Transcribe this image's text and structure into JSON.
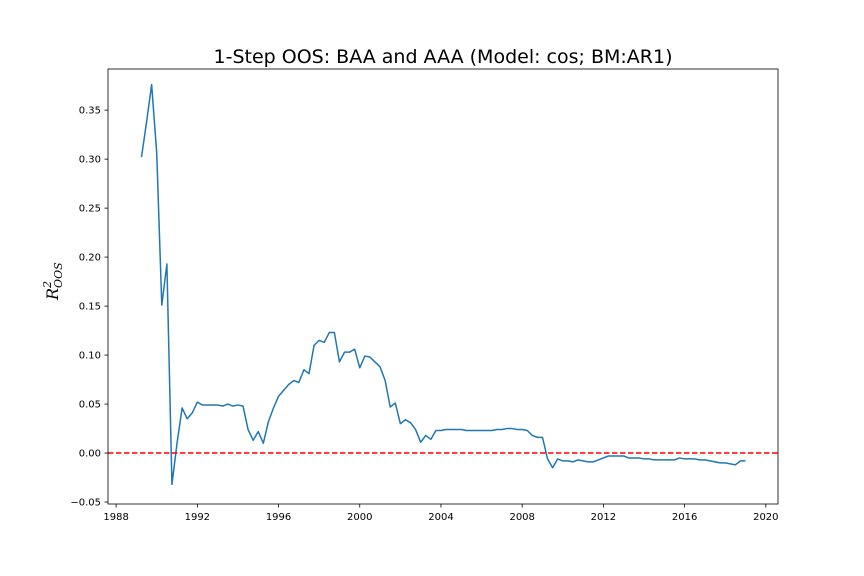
{
  "chart_data": {
    "type": "line",
    "title": "1-Step OOS: BAA and AAA (Model: cos; BM:AR1)",
    "xlabel": "",
    "ylabel": {
      "base": "R",
      "superscript": "2",
      "subscript": "OOS"
    },
    "xlim": [
      1987.6,
      2020.6
    ],
    "ylim": [
      -0.052,
      0.392
    ],
    "x_ticks": [
      1988,
      1992,
      1996,
      2000,
      2004,
      2008,
      2012,
      2016,
      2020
    ],
    "x_tick_labels": [
      "1988",
      "1992",
      "1996",
      "2000",
      "2004",
      "2008",
      "2012",
      "2016",
      "2020"
    ],
    "y_ticks": [
      -0.05,
      0.0,
      0.05,
      0.1,
      0.15,
      0.2,
      0.25,
      0.3,
      0.35
    ],
    "y_tick_labels": [
      "−0.05",
      "0.00",
      "0.05",
      "0.10",
      "0.15",
      "0.20",
      "0.25",
      "0.30",
      "0.35"
    ],
    "grid": false,
    "legend": "none",
    "reference_line": {
      "y": 0.0,
      "style": "dashed",
      "color": "#ff0000"
    },
    "series": [
      {
        "color": "#1f77b4",
        "x": [
          1989.25,
          1989.5,
          1989.75,
          1990.0,
          1990.25,
          1990.5,
          1990.75,
          1991.0,
          1991.25,
          1991.5,
          1991.75,
          1992.0,
          1992.25,
          1992.5,
          1992.75,
          1993.0,
          1993.25,
          1993.5,
          1993.75,
          1994.0,
          1994.25,
          1994.5,
          1994.75,
          1995.0,
          1995.25,
          1995.5,
          1995.75,
          1996.0,
          1996.25,
          1996.5,
          1996.75,
          1997.0,
          1997.25,
          1997.5,
          1997.75,
          1998.0,
          1998.25,
          1998.5,
          1998.75,
          1999.0,
          1999.25,
          1999.5,
          1999.75,
          2000.0,
          2000.25,
          2000.5,
          2000.75,
          2001.0,
          2001.25,
          2001.5,
          2001.75,
          2002.0,
          2002.25,
          2002.5,
          2002.75,
          2003.0,
          2003.25,
          2003.5,
          2003.75,
          2004.0,
          2004.25,
          2004.5,
          2004.75,
          2005.0,
          2005.25,
          2005.5,
          2005.75,
          2006.0,
          2006.25,
          2006.5,
          2006.75,
          2007.0,
          2007.25,
          2007.5,
          2007.75,
          2008.0,
          2008.25,
          2008.5,
          2008.75,
          2009.0,
          2009.25,
          2009.5,
          2009.75,
          2010.0,
          2010.25,
          2010.5,
          2010.75,
          2011.0,
          2011.25,
          2011.5,
          2011.75,
          2012.0,
          2012.25,
          2012.5,
          2012.75,
          2013.0,
          2013.25,
          2013.5,
          2013.75,
          2014.0,
          2014.25,
          2014.5,
          2014.75,
          2015.0,
          2015.25,
          2015.5,
          2015.75,
          2016.0,
          2016.25,
          2016.5,
          2016.75,
          2017.0,
          2017.25,
          2017.5,
          2017.75,
          2018.0,
          2018.25,
          2018.5,
          2018.75,
          2019.0
        ],
        "y": [
          0.302,
          0.338,
          0.376,
          0.306,
          0.151,
          0.193,
          -0.032,
          0.01,
          0.046,
          0.035,
          0.041,
          0.052,
          0.049,
          0.049,
          0.049,
          0.049,
          0.048,
          0.05,
          0.048,
          0.049,
          0.048,
          0.024,
          0.013,
          0.022,
          0.01,
          0.032,
          0.046,
          0.058,
          0.064,
          0.07,
          0.074,
          0.072,
          0.085,
          0.081,
          0.11,
          0.115,
          0.113,
          0.123,
          0.123,
          0.093,
          0.103,
          0.103,
          0.106,
          0.087,
          0.099,
          0.098,
          0.093,
          0.088,
          0.074,
          0.047,
          0.051,
          0.03,
          0.034,
          0.031,
          0.024,
          0.011,
          0.018,
          0.014,
          0.023,
          0.023,
          0.024,
          0.024,
          0.024,
          0.024,
          0.023,
          0.023,
          0.023,
          0.023,
          0.023,
          0.023,
          0.024,
          0.024,
          0.025,
          0.025,
          0.024,
          0.024,
          0.023,
          0.018,
          0.016,
          0.016,
          -0.006,
          -0.015,
          -0.006,
          -0.008,
          -0.008,
          -0.009,
          -0.007,
          -0.008,
          -0.009,
          -0.009,
          -0.007,
          -0.005,
          -0.003,
          -0.003,
          -0.003,
          -0.003,
          -0.005,
          -0.005,
          -0.005,
          -0.006,
          -0.006,
          -0.007,
          -0.007,
          -0.007,
          -0.007,
          -0.007,
          -0.005,
          -0.006,
          -0.006,
          -0.006,
          -0.007,
          -0.007,
          -0.008,
          -0.009,
          -0.01,
          -0.01,
          -0.011,
          -0.012,
          -0.008,
          -0.008
        ]
      }
    ]
  }
}
